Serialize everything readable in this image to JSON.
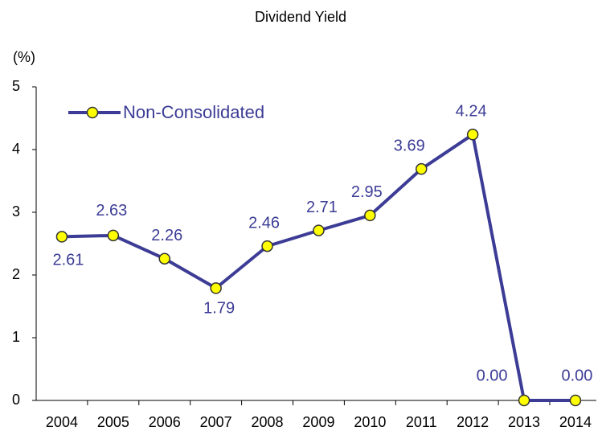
{
  "chart_data": {
    "type": "line",
    "title": "Dividend Yield",
    "y_label": "(%)",
    "categories": [
      "2004",
      "2005",
      "2006",
      "2007",
      "2008",
      "2009",
      "2010",
      "2011",
      "2012",
      "2013",
      "2014"
    ],
    "series": [
      {
        "name": "Non-Consolidated",
        "color": "#3c3c96",
        "marker_color": "#ffff00",
        "values": [
          2.61,
          2.63,
          2.26,
          1.79,
          2.46,
          2.71,
          2.95,
          3.69,
          4.24,
          0,
          0
        ],
        "value_labels": [
          "2.61",
          "2.63",
          "2.26",
          "1.79",
          "2.46",
          "2.71",
          "2.95",
          "3.69",
          "4.24",
          "0.00",
          "0.00"
        ]
      }
    ],
    "ylim": [
      0,
      5
    ],
    "yticks": [
      0,
      1,
      2,
      3,
      4,
      5
    ],
    "grid": false,
    "legend": "upper left"
  }
}
